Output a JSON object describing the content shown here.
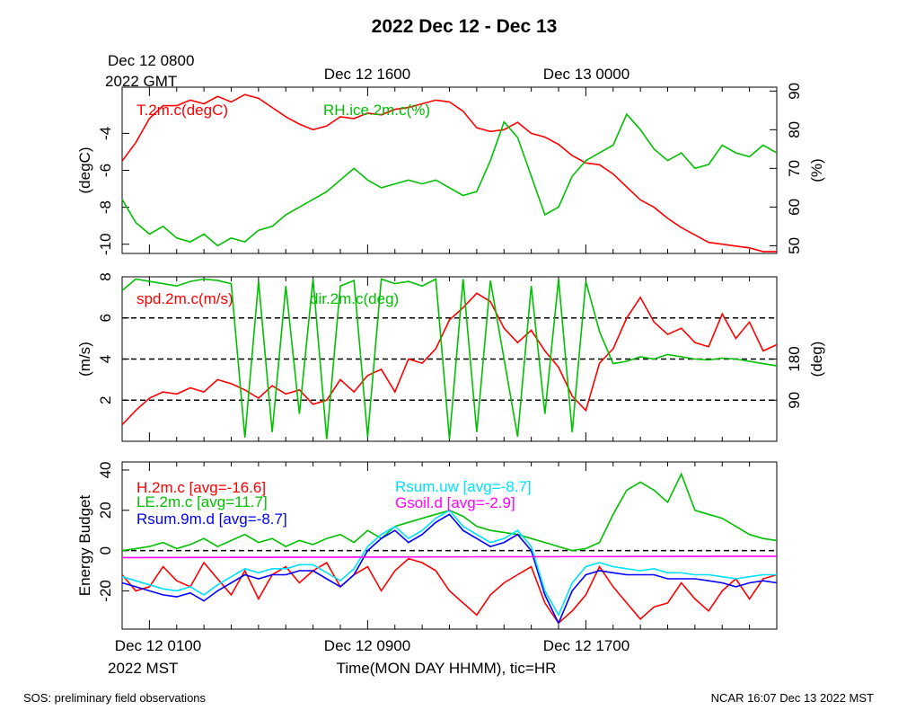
{
  "title": "2022 Dec 12 - Dec 13",
  "gmt_label_line1": "Dec 12 0800",
  "gmt_label_line2": "2022 GMT",
  "top_time_ticks": [
    "Dec 12 1600",
    "Dec 13 0000"
  ],
  "bottom_time_ticks": [
    "Dec 12 0100",
    "Dec 12 0900",
    "Dec 12 1700"
  ],
  "mst_label": "2022 MST",
  "x_axis_title": "Time(MON DAY HHMM), tic=HR",
  "footer_left": "SOS: preliminary field observations",
  "footer_right": "NCAR 16:07 Dec 13 2022 MST",
  "colors": {
    "red": "#ff0000",
    "green": "#00c000",
    "blue": "#0000ff",
    "cyan": "#00e0ff",
    "magenta": "#ff00ff"
  },
  "chart_data": [
    {
      "type": "line",
      "panel": "temperature",
      "x_unit": "hours since Dec 12 0000 MST",
      "xlim": [
        0,
        24
      ],
      "ylabel_left": "(degC)",
      "ylabel_right": "(%)",
      "ylim_left": [
        -10.5,
        -1.5
      ],
      "ylim_right": [
        48,
        91
      ],
      "yticks_left": [
        "-4",
        "-6",
        "-8",
        "-10"
      ],
      "yticks_left_values": [
        -4,
        -6,
        -8,
        -10
      ],
      "yticks_right": [
        "90",
        "80",
        "70",
        "60",
        "50"
      ],
      "yticks_right_values": [
        90,
        80,
        70,
        60,
        50
      ],
      "series": [
        {
          "name": "T.2m.c(degC)",
          "label": "T.2m.c(degC)",
          "color": "red",
          "axis": "left",
          "x": [
            0,
            0.5,
            1,
            1.5,
            2,
            2.5,
            3,
            3.5,
            4,
            4.5,
            5,
            5.5,
            6,
            6.5,
            7,
            7.5,
            8,
            8.5,
            9,
            9.5,
            10,
            10.5,
            11,
            11.5,
            12,
            12.5,
            13,
            13.5,
            14,
            14.5,
            15,
            15.5,
            16,
            16.5,
            17,
            17.5,
            18,
            18.5,
            19,
            19.5,
            20,
            20.5,
            21,
            21.5,
            22,
            22.5,
            23,
            23.5,
            24
          ],
          "values": [
            -5.5,
            -4.5,
            -3.2,
            -2.5,
            -2.5,
            -2.2,
            -2.4,
            -2.0,
            -2.3,
            -1.9,
            -2.1,
            -2.6,
            -3.1,
            -3.5,
            -3.8,
            -3.6,
            -3.1,
            -3.2,
            -2.9,
            -3.0,
            -2.7,
            -2.6,
            -2.4,
            -2.2,
            -2.3,
            -2.8,
            -3.7,
            -3.9,
            -3.8,
            -3.4,
            -4.0,
            -4.2,
            -4.6,
            -5.2,
            -5.6,
            -5.7,
            -6.2,
            -6.9,
            -7.6,
            -8.0,
            -8.6,
            -9.1,
            -9.5,
            -9.9,
            -10.0,
            -10.1,
            -10.2,
            -10.4,
            -10.4
          ]
        },
        {
          "name": "RH.ice.2m.c(%)",
          "label": "RH.ice.2m.c(%)",
          "color": "green",
          "axis": "right",
          "x": [
            0,
            0.5,
            1,
            1.5,
            2,
            2.5,
            3,
            3.5,
            4,
            4.5,
            5,
            5.5,
            6,
            6.5,
            7,
            7.5,
            8,
            8.5,
            9,
            9.5,
            10,
            10.5,
            11,
            11.5,
            12,
            12.5,
            13,
            13.5,
            14,
            14.5,
            15,
            15.5,
            16,
            16.5,
            17,
            17.5,
            18,
            18.5,
            19,
            19.5,
            20,
            20.5,
            21,
            21.5,
            22,
            22.5,
            23,
            23.5,
            24
          ],
          "values": [
            62,
            56,
            53,
            55,
            52,
            51,
            53,
            50,
            52,
            51,
            54,
            55,
            58,
            60,
            62,
            64,
            67,
            70,
            67,
            65,
            66,
            67,
            66,
            67,
            65,
            63,
            64,
            72,
            82,
            78,
            68,
            58,
            60,
            68,
            72,
            74,
            76,
            84,
            80,
            75,
            72,
            74,
            70,
            71,
            76,
            74,
            73,
            76,
            74
          ]
        }
      ]
    },
    {
      "type": "line",
      "panel": "wind",
      "x_unit": "hours since Dec 12 0000 MST",
      "xlim": [
        0,
        24
      ],
      "ylabel_left": "(m/s)",
      "ylabel_right": "(deg)",
      "ylim_left": [
        0,
        8
      ],
      "ylim_right": [
        0,
        360
      ],
      "yticks_left": [
        "8",
        "6",
        "4",
        "2"
      ],
      "yticks_left_values": [
        8,
        6,
        4,
        2
      ],
      "yticks_right": [
        "180",
        "90"
      ],
      "yticks_right_values": [
        180,
        90
      ],
      "reference_lines_left": [
        2,
        4,
        6
      ],
      "series": [
        {
          "name": "spd.2m.c(m/s)",
          "label": "spd.2m.c(m/s)",
          "color": "red",
          "axis": "left",
          "x": [
            0,
            0.5,
            1,
            1.5,
            2,
            2.5,
            3,
            3.5,
            4,
            4.5,
            5,
            5.5,
            6,
            6.5,
            7,
            7.5,
            8,
            8.5,
            9,
            9.5,
            10,
            10.5,
            11,
            11.5,
            12,
            12.5,
            13,
            13.5,
            14,
            14.5,
            15,
            15.5,
            16,
            16.5,
            17,
            17.5,
            18,
            18.5,
            19,
            19.5,
            20,
            20.5,
            21,
            21.5,
            22,
            22.5,
            23,
            23.5,
            24
          ],
          "values": [
            0.8,
            1.5,
            2.1,
            2.4,
            2.3,
            2.6,
            2.4,
            3.0,
            2.8,
            2.5,
            2.1,
            2.7,
            2.3,
            2.5,
            1.8,
            2.0,
            3.0,
            2.4,
            3.2,
            3.5,
            2.4,
            4.0,
            3.8,
            4.5,
            5.9,
            6.5,
            7.2,
            6.8,
            5.5,
            4.8,
            5.4,
            4.4,
            3.6,
            2.2,
            1.5,
            3.8,
            4.5,
            6.0,
            7.0,
            5.8,
            5.2,
            5.5,
            4.8,
            4.6,
            6.2,
            5.0,
            5.8,
            4.4,
            4.7
          ]
        },
        {
          "name": "dir.2m.c(deg)",
          "label": "dir.2m.c(deg)",
          "color": "green",
          "axis": "right",
          "x": [
            0,
            0.5,
            1,
            1.5,
            2,
            2.5,
            3,
            3.5,
            4,
            4.5,
            5,
            5.5,
            6,
            6.5,
            7,
            7.5,
            8,
            8.5,
            9,
            9.5,
            10,
            10.5,
            11,
            11.5,
            12,
            12.5,
            13,
            13.5,
            14,
            14.5,
            15,
            15.5,
            16,
            16.5,
            17,
            17.5,
            18,
            18.5,
            19,
            19.5,
            20,
            20.5,
            21,
            21.5,
            22,
            22.5,
            23,
            23.5,
            24
          ],
          "values": [
            330,
            355,
            350,
            345,
            340,
            350,
            355,
            352,
            345,
            8,
            350,
            20,
            340,
            60,
            355,
            5,
            340,
            352,
            10,
            355,
            345,
            350,
            340,
            355,
            5,
            355,
            20,
            352,
            180,
            10,
            340,
            60,
            355,
            20,
            350,
            240,
            170,
            175,
            185,
            180,
            190,
            185,
            180,
            178,
            182,
            180,
            175,
            170,
            165
          ]
        }
      ]
    },
    {
      "type": "line",
      "panel": "energy",
      "x_unit": "hours since Dec 12 0000 MST",
      "xlim": [
        0,
        24
      ],
      "ylabel_left": "Energy Budget",
      "ylim_left": [
        -39,
        44
      ],
      "yticks_left": [
        "40",
        "20",
        "0",
        "-20"
      ],
      "yticks_left_values": [
        40,
        20,
        0,
        -20
      ],
      "reference_lines_left": [
        0
      ],
      "series": [
        {
          "name": "H.2m.c",
          "label": "H.2m.c [avg=-16.6]",
          "color": "red",
          "x": [
            0,
            0.5,
            1,
            1.5,
            2,
            2.5,
            3,
            3.5,
            4,
            4.5,
            5,
            5.5,
            6,
            6.5,
            7,
            7.5,
            8,
            8.5,
            9,
            9.5,
            10,
            10.5,
            11,
            11.5,
            12,
            12.5,
            13,
            13.5,
            14,
            14.5,
            15,
            15.5,
            16,
            16.5,
            17,
            17.5,
            18,
            18.5,
            19,
            19.5,
            20,
            20.5,
            21,
            21.5,
            22,
            22.5,
            23,
            23.5,
            24
          ],
          "values": [
            -12,
            -20,
            -18,
            -8,
            -15,
            -18,
            -6,
            -14,
            -22,
            -10,
            -24,
            -12,
            -8,
            -16,
            -10,
            -6,
            -18,
            -12,
            -8,
            -20,
            -10,
            -4,
            -6,
            -10,
            -20,
            -26,
            -32,
            -22,
            -16,
            -12,
            -8,
            -26,
            -36,
            -30,
            -22,
            -8,
            -18,
            -26,
            -34,
            -28,
            -26,
            -16,
            -24,
            -30,
            -20,
            -14,
            -24,
            -14,
            -12
          ]
        },
        {
          "name": "LE.2m.c",
          "label": "LE.2m.c [avg=11.7]",
          "color": "green",
          "x": [
            0,
            0.5,
            1,
            1.5,
            2,
            2.5,
            3,
            3.5,
            4,
            4.5,
            5,
            5.5,
            6,
            6.5,
            7,
            7.5,
            8,
            8.5,
            9,
            9.5,
            10,
            10.5,
            11,
            11.5,
            12,
            12.5,
            13,
            13.5,
            14,
            14.5,
            15,
            15.5,
            16,
            16.5,
            17,
            17.5,
            18,
            18.5,
            19,
            19.5,
            20,
            20.5,
            21,
            21.5,
            22,
            22.5,
            23,
            23.5,
            24
          ],
          "values": [
            0,
            1,
            2,
            4,
            1,
            3,
            6,
            2,
            5,
            8,
            4,
            6,
            2,
            5,
            3,
            6,
            8,
            4,
            10,
            6,
            12,
            14,
            16,
            18,
            20,
            17,
            12,
            10,
            9,
            8,
            6,
            4,
            2,
            0,
            1,
            4,
            18,
            30,
            34,
            30,
            24,
            38,
            20,
            18,
            16,
            12,
            8,
            6,
            5
          ]
        },
        {
          "name": "Rsum.9m.d",
          "label": "Rsum.9m.d [avg=-8.7]",
          "color": "blue",
          "x": [
            0,
            0.5,
            1,
            1.5,
            2,
            2.5,
            3,
            3.5,
            4,
            4.5,
            5,
            5.5,
            6,
            6.5,
            7,
            7.5,
            8,
            8.5,
            9,
            9.5,
            10,
            10.5,
            11,
            11.5,
            12,
            12.5,
            13,
            13.5,
            14,
            14.5,
            15,
            15.5,
            16,
            16.5,
            17,
            17.5,
            18,
            18.5,
            19,
            19.5,
            20,
            20.5,
            21,
            21.5,
            22,
            22.5,
            23,
            23.5,
            24
          ],
          "values": [
            -16,
            -18,
            -20,
            -22,
            -23,
            -21,
            -25,
            -20,
            -16,
            -12,
            -14,
            -12,
            -12,
            -10,
            -10,
            -14,
            -18,
            -12,
            0,
            6,
            10,
            4,
            8,
            14,
            18,
            10,
            6,
            2,
            4,
            8,
            0,
            -22,
            -36,
            -20,
            -12,
            -10,
            -11,
            -12,
            -12,
            -12,
            -14,
            -14,
            -14,
            -15,
            -16,
            -18,
            -16,
            -15,
            -16
          ]
        },
        {
          "name": "Rsum.uw",
          "label": "Rsum.uw [avg=-8.7]",
          "color": "cyan",
          "x": [
            0,
            0.5,
            1,
            1.5,
            2,
            2.5,
            3,
            3.5,
            4,
            4.5,
            5,
            5.5,
            6,
            6.5,
            7,
            7.5,
            8,
            8.5,
            9,
            9.5,
            10,
            10.5,
            11,
            11.5,
            12,
            12.5,
            13,
            13.5,
            14,
            14.5,
            15,
            15.5,
            16,
            16.5,
            17,
            17.5,
            18,
            18.5,
            19,
            19.5,
            20,
            20.5,
            21,
            21.5,
            22,
            22.5,
            23,
            23.5,
            24
          ],
          "values": [
            -13,
            -15,
            -17,
            -19,
            -20,
            -18,
            -22,
            -17,
            -13,
            -9,
            -11,
            -9,
            -9,
            -7,
            -7,
            -11,
            -15,
            -9,
            2,
            8,
            12,
            6,
            10,
            16,
            20,
            12,
            8,
            4,
            6,
            10,
            2,
            -20,
            -32,
            -16,
            -8,
            -6,
            -8,
            -9,
            -10,
            -9,
            -11,
            -11,
            -12,
            -12,
            -13,
            -14,
            -13,
            -12,
            -12
          ]
        },
        {
          "name": "Gsoil.d",
          "label": "Gsoil.d [avg=-2.9]",
          "color": "magenta",
          "x": [
            0,
            24
          ],
          "values": [
            -3.5,
            -2.8
          ]
        }
      ]
    }
  ]
}
